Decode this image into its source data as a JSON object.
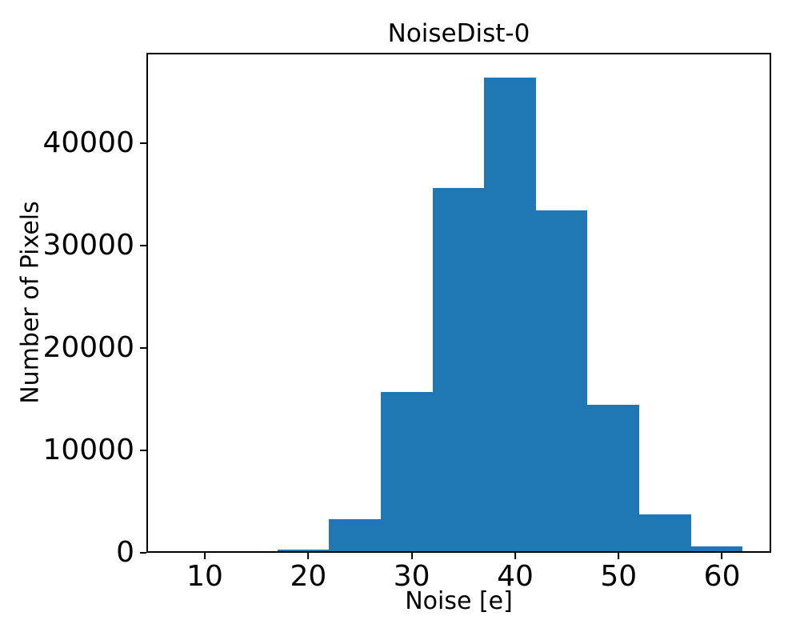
{
  "figure": {
    "title": "NoiseDist-0",
    "xlabel": "Noise [e]",
    "ylabel": "Number of Pixels"
  },
  "chart_data": {
    "type": "bar",
    "subtype": "histogram",
    "title": "NoiseDist-0",
    "xlabel": "Noise [e]",
    "ylabel": "Number of Pixels",
    "bin_edges": [
      17,
      22,
      27,
      32,
      37,
      42,
      47,
      52,
      57,
      62
    ],
    "values": [
      340,
      3280,
      15700,
      35600,
      46400,
      33450,
      14480,
      3730,
      600
    ],
    "x_ticks": [
      10,
      20,
      30,
      40,
      50,
      60
    ],
    "x_tick_labels": [
      "10",
      "20",
      "30",
      "40",
      "50",
      "60"
    ],
    "y_ticks": [
      0,
      10000,
      20000,
      30000,
      40000
    ],
    "y_tick_labels": [
      "0",
      "10000",
      "20000",
      "30000",
      "40000"
    ],
    "xlim": [
      4.35,
      64.75
    ],
    "ylim": [
      0,
      48800
    ],
    "bar_color": "#1f77b4",
    "text_color": "#000000",
    "background_color": "#ffffff",
    "grid": false,
    "legend_position": "none"
  }
}
